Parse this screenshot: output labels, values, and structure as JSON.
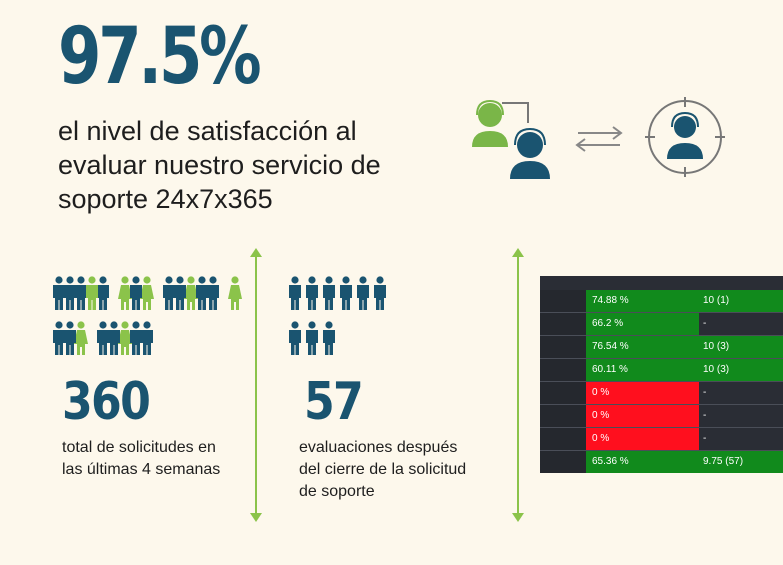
{
  "headline": {
    "percent": "97.5%",
    "lines": [
      "el nivel de satisfacción al",
      "evaluar nuestro servicio de",
      "soporte 24x7x365"
    ]
  },
  "colors": {
    "primary": "#1a5470",
    "accent_green": "#8bc34a",
    "background": "#fdf8ec",
    "table_green": "#118a1c",
    "table_red": "#ff0f1e"
  },
  "icons": {
    "support": [
      "agent-transfer-icon",
      "exchange-arrows-icon",
      "targeted-agent-icon"
    ]
  },
  "stat_requests": {
    "number": "360",
    "lines": [
      "total de solicitudes en",
      "las últimas 4 semanas"
    ]
  },
  "stat_evaluations": {
    "number": "57",
    "lines": [
      "evaluaciones después",
      "del cierre de la solicitud",
      "de soporte"
    ]
  },
  "table": {
    "rows": [
      {
        "pct": "74.88 %",
        "score": "10 (1)",
        "status": "green"
      },
      {
        "pct": "66.2 %",
        "score": "-",
        "status": "green"
      },
      {
        "pct": "76.54 %",
        "score": "10 (3)",
        "status": "green"
      },
      {
        "pct": "60.11 %",
        "score": "10 (3)",
        "status": "green"
      },
      {
        "pct": "0 %",
        "score": "-",
        "status": "red"
      },
      {
        "pct": "0 %",
        "score": "-",
        "status": "red"
      },
      {
        "pct": "0 %",
        "score": "-",
        "status": "red"
      },
      {
        "pct": "65.36 %",
        "score": "9.75 (57)",
        "status": "green"
      }
    ]
  }
}
